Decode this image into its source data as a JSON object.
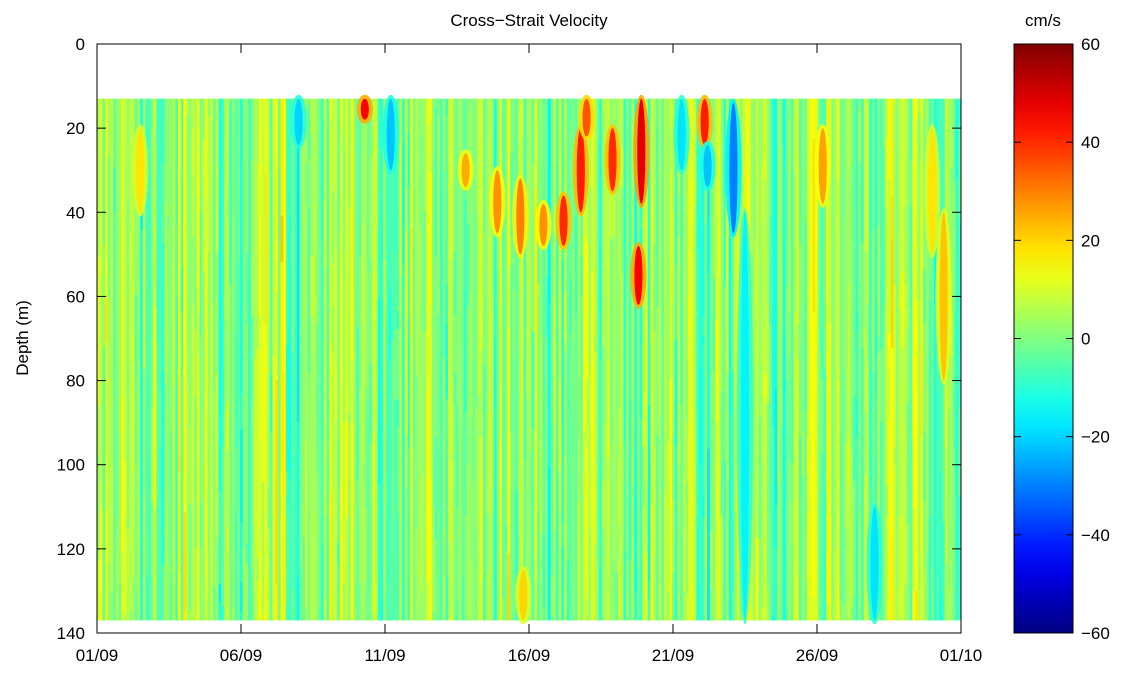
{
  "chart_data": {
    "type": "heatmap",
    "title": "Cross−Strait Velocity",
    "ylabel": "Depth (m)",
    "xlabel": "",
    "x_ticks": [
      "01/09",
      "06/09",
      "11/09",
      "16/09",
      "21/09",
      "26/09",
      "01/10"
    ],
    "x_range_days": [
      0,
      30
    ],
    "y_ticks": [
      "0",
      "20",
      "40",
      "60",
      "80",
      "100",
      "120",
      "140"
    ],
    "ylim": [
      0,
      140
    ],
    "y_reversed": true,
    "data_depth_range": [
      13,
      137
    ],
    "colorbar": {
      "label": "cm/s",
      "range": [
        -60,
        60
      ],
      "ticks": [
        "60",
        "40",
        "20",
        "0",
        "−20",
        "−40",
        "−60"
      ],
      "colormap": "jet"
    },
    "features": [
      {
        "day": 9.3,
        "depth_top": 13,
        "depth_bottom": 18,
        "value": 45
      },
      {
        "day": 12.8,
        "depth_top": 26,
        "depth_bottom": 34,
        "value": 25
      },
      {
        "day": 13.9,
        "depth_top": 30,
        "depth_bottom": 45,
        "value": 28
      },
      {
        "day": 14.7,
        "depth_top": 32,
        "depth_bottom": 50,
        "value": 30
      },
      {
        "day": 15.5,
        "depth_top": 38,
        "depth_bottom": 48,
        "value": 28
      },
      {
        "day": 16.2,
        "depth_top": 36,
        "depth_bottom": 48,
        "value": 40
      },
      {
        "day": 16.8,
        "depth_top": 20,
        "depth_bottom": 40,
        "value": 42
      },
      {
        "day": 17.0,
        "depth_top": 13,
        "depth_bottom": 22,
        "value": 35
      },
      {
        "day": 17.9,
        "depth_top": 20,
        "depth_bottom": 35,
        "value": 40
      },
      {
        "day": 18.9,
        "depth_top": 13,
        "depth_bottom": 38,
        "value": 48
      },
      {
        "day": 18.8,
        "depth_top": 48,
        "depth_bottom": 62,
        "value": 45
      },
      {
        "day": 21.1,
        "depth_top": 13,
        "depth_bottom": 24,
        "value": 42
      },
      {
        "day": 22.1,
        "depth_top": 14,
        "depth_bottom": 45,
        "value": -30
      },
      {
        "day": 21.2,
        "depth_top": 24,
        "depth_bottom": 34,
        "value": -22
      },
      {
        "day": 20.3,
        "depth_top": 13,
        "depth_bottom": 30,
        "value": -18
      },
      {
        "day": 10.2,
        "depth_top": 13,
        "depth_bottom": 30,
        "value": -22
      },
      {
        "day": 7.0,
        "depth_top": 13,
        "depth_bottom": 24,
        "value": -20
      },
      {
        "day": 25.2,
        "depth_top": 20,
        "depth_bottom": 38,
        "value": 26
      },
      {
        "day": 29.4,
        "depth_top": 40,
        "depth_bottom": 80,
        "value": 22
      },
      {
        "day": 29.0,
        "depth_top": 20,
        "depth_bottom": 50,
        "value": 18
      },
      {
        "day": 22.5,
        "depth_top": 40,
        "depth_bottom": 137,
        "value": -16
      },
      {
        "day": 27.0,
        "depth_top": 110,
        "depth_bottom": 137,
        "value": -18
      },
      {
        "day": 14.8,
        "depth_top": 125,
        "depth_bottom": 137,
        "value": 20
      },
      {
        "day": 1.5,
        "depth_top": 20,
        "depth_bottom": 40,
        "value": 18
      }
    ]
  }
}
